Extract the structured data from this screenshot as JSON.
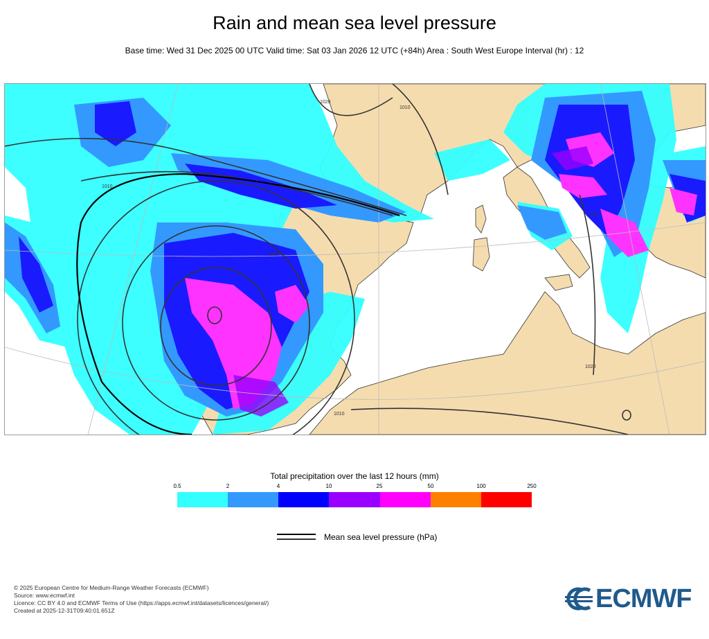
{
  "header": {
    "title": "Rain and mean sea level pressure",
    "subtitle": "Base time: Wed 31 Dec 2025 00 UTC Valid time: Sat 03 Jan 2026 12 UTC (+84h) Area : South West Europe Interval (hr) : 12"
  },
  "map": {
    "isobar_labels": [
      "1010",
      "1020",
      "1000",
      "1010",
      "1010",
      "1020",
      "1010"
    ],
    "land_color": "#f5dcae",
    "sea_color": "#ffffff",
    "isobar_color": "#333333"
  },
  "legend": {
    "title": "Total precipitation over the last 12 hours (mm)",
    "ticks": [
      "0.5",
      "2",
      "4",
      "10",
      "25",
      "50",
      "100",
      "250"
    ],
    "colors": [
      "#33ffff",
      "#3399ff",
      "#0000ff",
      "#9900ff",
      "#ff00ff",
      "#ff8000",
      "#ff0000"
    ],
    "colors_note_bins": 7
  },
  "pressure_legend": {
    "label": "Mean sea level pressure (hPa)"
  },
  "footer": {
    "lines": [
      "© 2025 European Centre for Medium-Range Weather Forecasts (ECMWF)",
      "Source: www.ecmwf.int",
      "Licence: CC BY 4.0 and ECMWF Terms of Use (https://apps.ecmwf.int/datasets/licences/general/)",
      "Created at 2025-12-31T09:40:01.651Z"
    ]
  },
  "logo": {
    "text": "ECMWF",
    "color": "#1f5a8c"
  }
}
